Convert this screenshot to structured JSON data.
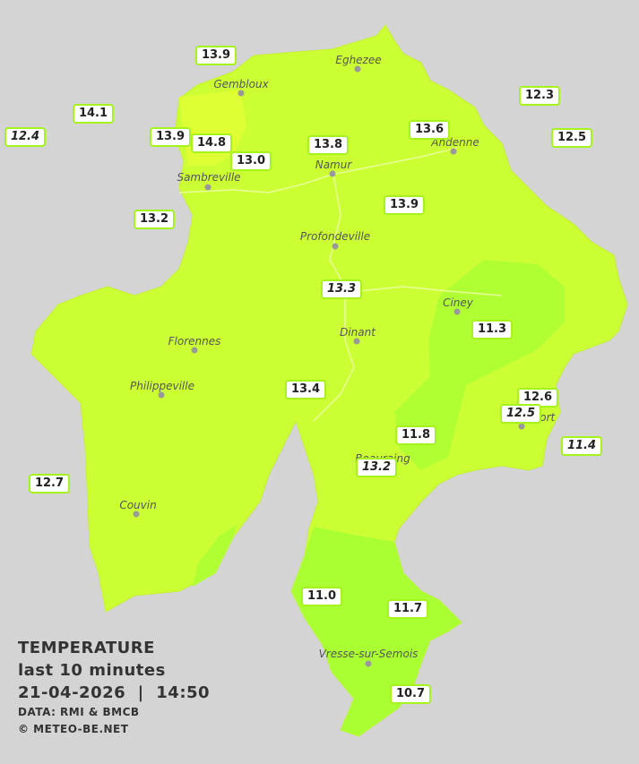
{
  "stations": [
    "13.9",
    "14.1",
    "12.4",
    "13.9",
    "14.8",
    "13.0",
    "13.8",
    "13.6",
    "12.3",
    "12.5",
    "13.2",
    "13.9",
    "13.3",
    "11.3",
    "13.4",
    "12.6",
    "12.5",
    "11.8",
    "11.4",
    "13.2",
    "12.7",
    "11.0",
    "11.7",
    "10.7"
  ],
  "towns": [
    "Eghezee",
    "Gembloux",
    "Andenne",
    "Namur",
    "Sambreville",
    "Profondeville",
    "Ciney",
    "Dinant",
    "Florennes",
    "Philippeville",
    "Rochefort",
    "Beauraing",
    "Couvin",
    "Vresse-sur-Semois"
  ],
  "legend": {
    "title": "TEMPERATURE",
    "subtitle": "last 10 minutes",
    "timestamp": "21-04-2026  |  14:50",
    "source": "DATA: RMI & BMCB",
    "copyright": "© METEO-BE.NET"
  }
}
